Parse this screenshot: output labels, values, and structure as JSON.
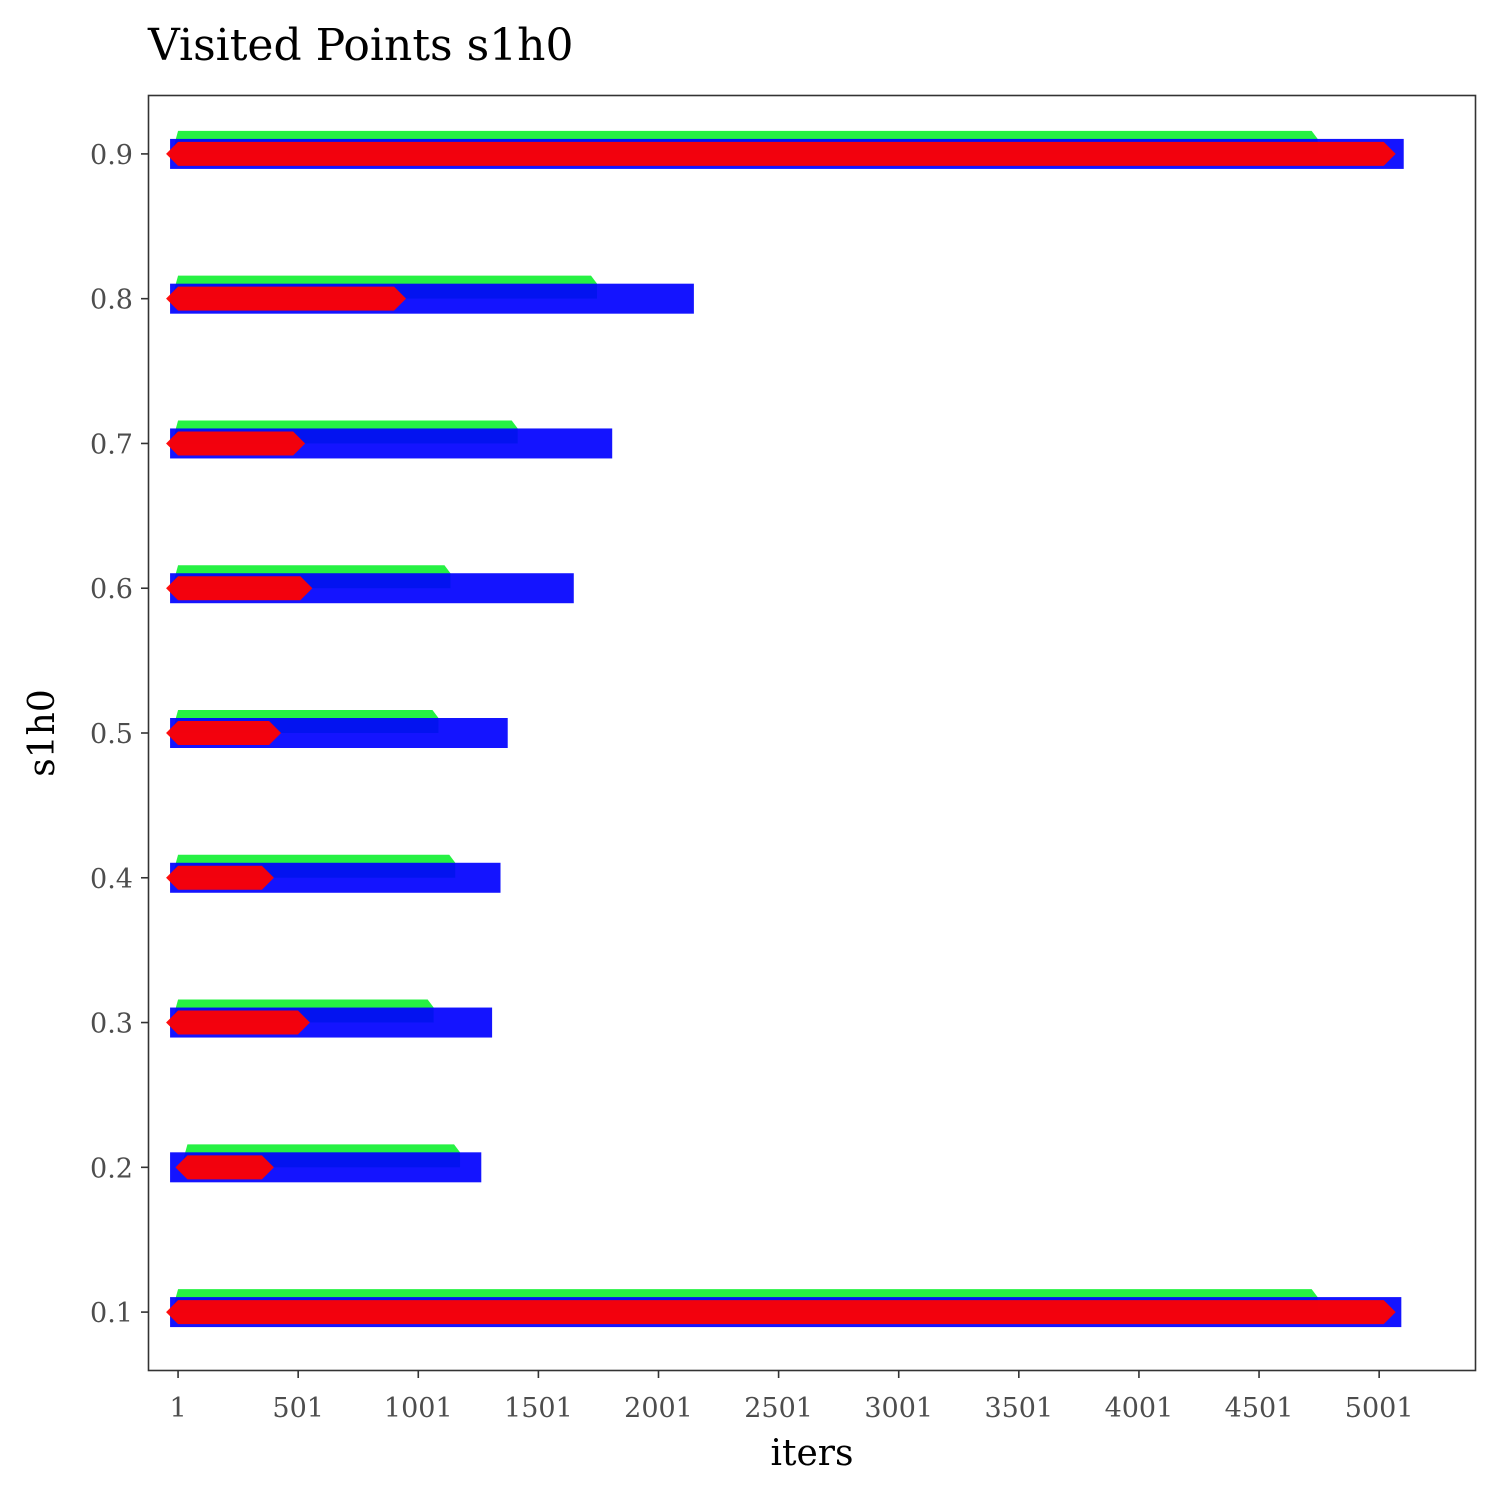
{
  "chart_data": {
    "type": "scatter",
    "title": "Visited Points s1h0",
    "xlabel": "iters",
    "ylabel": "s1h0",
    "xlim": [
      -120,
      5400
    ],
    "ylim": [
      0.06,
      0.94
    ],
    "x_ticks": [
      1,
      501,
      1001,
      1501,
      2001,
      2501,
      3001,
      3501,
      4001,
      4501,
      5001
    ],
    "y_ticks": [
      0.1,
      0.2,
      0.3,
      0.4,
      0.5,
      0.6,
      0.7,
      0.8,
      0.9
    ],
    "grid": false,
    "legend": "none",
    "colors": {
      "green": "#00ee22",
      "blue": "#0000ff",
      "red": "#ff0000"
    },
    "series": [
      {
        "marker": "triangle",
        "color": "#00ee22",
        "ranges": [
          {
            "y": 0.1,
            "x_min": 1,
            "x_max": 4720
          },
          {
            "y": 0.2,
            "x_min": 40,
            "x_max": 1150
          },
          {
            "y": 0.3,
            "x_min": 1,
            "x_max": 1040
          },
          {
            "y": 0.4,
            "x_min": 1,
            "x_max": 1130
          },
          {
            "y": 0.5,
            "x_min": 1,
            "x_max": 1060
          },
          {
            "y": 0.6,
            "x_min": 1,
            "x_max": 1110
          },
          {
            "y": 0.7,
            "x_min": 1,
            "x_max": 1390
          },
          {
            "y": 0.8,
            "x_min": 1,
            "x_max": 1720
          },
          {
            "y": 0.9,
            "x_min": 1,
            "x_max": 4720
          }
        ]
      },
      {
        "marker": "square",
        "color": "#0000ff",
        "ranges": [
          {
            "y": 0.1,
            "x_min": 1,
            "x_max": 5060
          },
          {
            "y": 0.2,
            "x_min": 1,
            "x_max": 1230
          },
          {
            "y": 0.3,
            "x_min": 1,
            "x_max": 1275
          },
          {
            "y": 0.4,
            "x_min": 1,
            "x_max": 1310
          },
          {
            "y": 0.5,
            "x_min": 1,
            "x_max": 1340
          },
          {
            "y": 0.6,
            "x_min": 1,
            "x_max": 1615
          },
          {
            "y": 0.7,
            "x_min": 1,
            "x_max": 1775
          },
          {
            "y": 0.8,
            "x_min": 1,
            "x_max": 2115
          },
          {
            "y": 0.9,
            "x_min": 1,
            "x_max": 5070
          }
        ]
      },
      {
        "marker": "diamond",
        "color": "#ff0000",
        "ranges": [
          {
            "y": 0.1,
            "x_min": 1,
            "x_max": 5020
          },
          {
            "y": 0.2,
            "x_min": 40,
            "x_max": 350
          },
          {
            "y": 0.3,
            "x_min": 1,
            "x_max": 500
          },
          {
            "y": 0.4,
            "x_min": 1,
            "x_max": 350
          },
          {
            "y": 0.5,
            "x_min": 1,
            "x_max": 380
          },
          {
            "y": 0.6,
            "x_min": 1,
            "x_max": 510
          },
          {
            "y": 0.7,
            "x_min": 1,
            "x_max": 480
          },
          {
            "y": 0.8,
            "x_min": 1,
            "x_max": 900
          },
          {
            "y": 0.9,
            "x_min": 1,
            "x_max": 5020
          }
        ]
      }
    ]
  }
}
